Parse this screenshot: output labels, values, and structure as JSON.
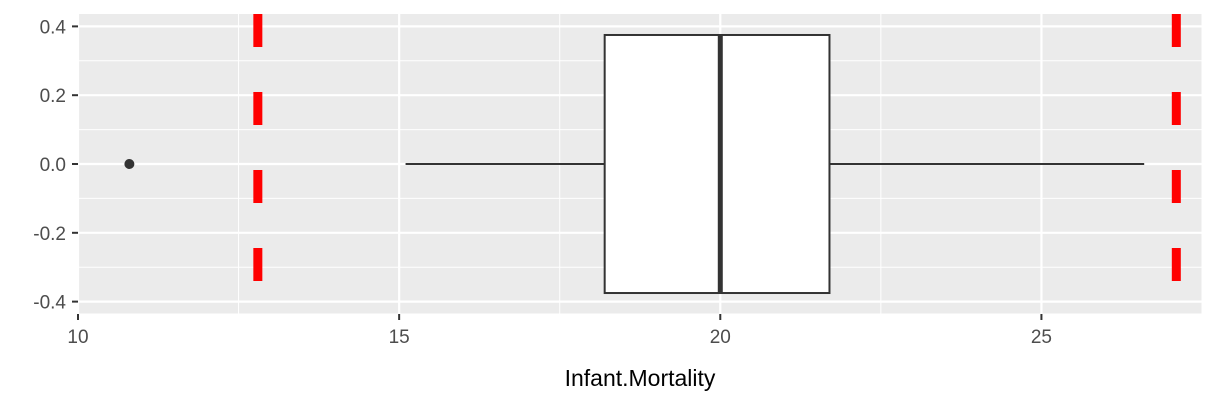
{
  "chart_data": {
    "type": "boxplot",
    "title": "",
    "xlabel": "Infant.Mortality",
    "ylabel": "",
    "xlim": [
      10,
      27.5
    ],
    "ylim": [
      -0.4,
      0.4
    ],
    "x_ticks": [
      10,
      15,
      20,
      25
    ],
    "x_tick_labels": [
      "10",
      "15",
      "20",
      "25"
    ],
    "y_ticks": [
      -0.4,
      -0.2,
      0.0,
      0.2,
      0.4
    ],
    "y_tick_labels": [
      "-0.4",
      "-0.2",
      "0.0",
      "0.2",
      "0.4"
    ],
    "grid": true,
    "legend": "none",
    "box": {
      "whisker_low": 15.1,
      "q1": 18.2,
      "median": 20.0,
      "q3": 21.7,
      "whisker_high": 26.6,
      "y_low": -0.375,
      "y_high": 0.375,
      "y_center": 0.0
    },
    "outliers": [
      {
        "x": 10.8,
        "y": 0.0
      }
    ],
    "reference_lines": [
      12.8,
      27.1
    ],
    "colors": {
      "panel": "#ebebeb",
      "grid": "#ffffff",
      "box_fill": "#ffffff",
      "box_line": "#333333",
      "reference_line": "#ff0000",
      "outlier": "#333333"
    }
  }
}
